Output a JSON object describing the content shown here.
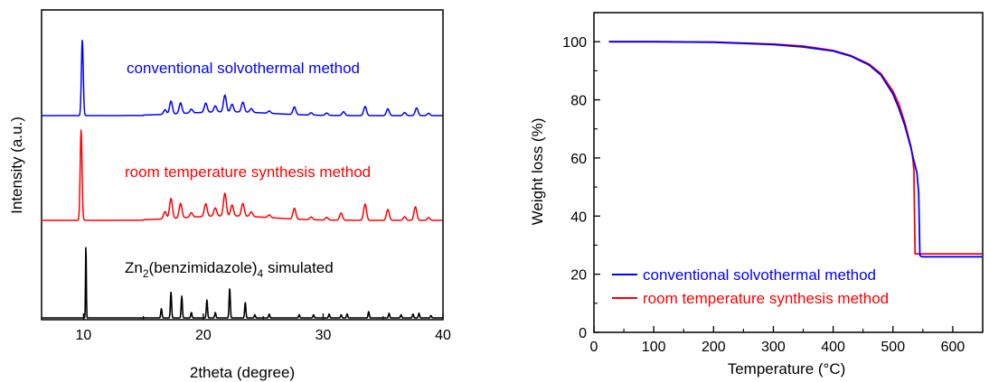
{
  "chart_data": [
    {
      "type": "line",
      "xlabel": "2theta (degree)",
      "ylabel": "Intensity (a.u.)",
      "xlim": [
        6.5,
        40
      ],
      "x_ticks": [
        10,
        20,
        30,
        40
      ],
      "y_ticks_shown": false,
      "grid": false,
      "legend": "none",
      "annotations": [
        {
          "text": "conventional solvothermal method",
          "color": "#0000ff"
        },
        {
          "text": "room temperature synthesis method",
          "color": "#ff0000"
        },
        {
          "text_parts": [
            "Zn",
            "2",
            "(benzimidazole)",
            "4",
            " simulated"
          ],
          "color": "#000000"
        }
      ],
      "series": [
        {
          "label_ref": "conventional solvothermal method",
          "color": "#0000ff",
          "offset": 2.0,
          "baseline": 0.05,
          "peaks": [
            [
              9.9,
              1.0
            ],
            [
              16.8,
              0.06
            ],
            [
              17.3,
              0.17
            ],
            [
              18.1,
              0.14
            ],
            [
              19.0,
              0.05
            ],
            [
              20.2,
              0.12
            ],
            [
              21.0,
              0.08
            ],
            [
              21.8,
              0.22
            ],
            [
              22.4,
              0.1
            ],
            [
              23.3,
              0.13
            ],
            [
              24.0,
              0.05
            ],
            [
              25.5,
              0.03
            ],
            [
              27.6,
              0.1
            ],
            [
              29.0,
              0.03
            ],
            [
              30.3,
              0.03
            ],
            [
              31.7,
              0.05
            ],
            [
              33.5,
              0.12
            ],
            [
              35.4,
              0.09
            ],
            [
              36.8,
              0.04
            ],
            [
              37.8,
              0.1
            ],
            [
              38.8,
              0.03
            ]
          ]
        },
        {
          "label_ref": "room temperature synthesis method",
          "color": "#ff0000",
          "offset": 1.0,
          "baseline": 0.05,
          "peaks": [
            [
              9.8,
              1.0
            ],
            [
              16.8,
              0.08
            ],
            [
              17.3,
              0.22
            ],
            [
              18.1,
              0.16
            ],
            [
              19.0,
              0.05
            ],
            [
              20.2,
              0.14
            ],
            [
              21.0,
              0.09
            ],
            [
              21.8,
              0.25
            ],
            [
              22.4,
              0.12
            ],
            [
              23.3,
              0.14
            ],
            [
              24.0,
              0.05
            ],
            [
              25.5,
              0.03
            ],
            [
              27.6,
              0.12
            ],
            [
              29.0,
              0.03
            ],
            [
              30.3,
              0.03
            ],
            [
              31.5,
              0.08
            ],
            [
              33.5,
              0.18
            ],
            [
              35.4,
              0.12
            ],
            [
              36.8,
              0.04
            ],
            [
              37.7,
              0.15
            ],
            [
              38.8,
              0.03
            ]
          ]
        },
        {
          "label_ref": "Zn2(benzimidazole)4 simulated",
          "color": "#000000",
          "offset": 0.0,
          "baseline": 0.0,
          "peaks": [
            [
              10.2,
              0.95
            ],
            [
              16.5,
              0.12
            ],
            [
              17.3,
              0.33
            ],
            [
              18.2,
              0.28
            ],
            [
              19.0,
              0.07
            ],
            [
              20.3,
              0.23
            ],
            [
              21.0,
              0.07
            ],
            [
              22.2,
              0.38
            ],
            [
              23.5,
              0.2
            ],
            [
              24.3,
              0.04
            ],
            [
              25.5,
              0.05
            ],
            [
              28.0,
              0.04
            ],
            [
              29.2,
              0.04
            ],
            [
              30.5,
              0.05
            ],
            [
              31.5,
              0.04
            ],
            [
              32.0,
              0.05
            ],
            [
              33.8,
              0.08
            ],
            [
              35.5,
              0.06
            ],
            [
              36.5,
              0.04
            ],
            [
              37.5,
              0.05
            ],
            [
              38.0,
              0.06
            ],
            [
              39.0,
              0.03
            ]
          ]
        }
      ]
    },
    {
      "type": "line",
      "xlabel": "Temperature (°C)",
      "ylabel": "Weight loss (%)",
      "xlim": [
        0,
        650
      ],
      "ylim": [
        0,
        110
      ],
      "x_ticks": [
        0,
        100,
        200,
        300,
        400,
        500,
        600
      ],
      "y_ticks": [
        0,
        20,
        40,
        60,
        80,
        100
      ],
      "grid": false,
      "legend": "bottom-left",
      "series": [
        {
          "name": "conventional solvothermal method",
          "color": "#0000ff",
          "x": [
            25,
            100,
            200,
            300,
            350,
            400,
            430,
            460,
            480,
            500,
            510,
            520,
            530,
            535,
            540,
            543,
            545,
            548,
            560,
            600,
            650
          ],
          "y": [
            100,
            100,
            99.8,
            99.0,
            98.2,
            96.8,
            95.0,
            92.0,
            88.5,
            82.0,
            77.0,
            71.0,
            63.5,
            59.0,
            55.0,
            48.0,
            26.5,
            26.0,
            26.0,
            26.0,
            26.0
          ]
        },
        {
          "name": "room temperature synthesis method",
          "color": "#ff0000",
          "x": [
            25,
            100,
            200,
            300,
            350,
            400,
            430,
            460,
            480,
            500,
            510,
            520,
            530,
            533,
            535,
            537,
            545,
            600,
            650
          ],
          "y": [
            100,
            100,
            99.9,
            99.2,
            98.5,
            97.0,
            95.2,
            92.3,
            89.0,
            83.0,
            78.5,
            72.0,
            64.0,
            60.0,
            56.0,
            27.0,
            27.0,
            27.0,
            27.0
          ]
        }
      ]
    }
  ]
}
